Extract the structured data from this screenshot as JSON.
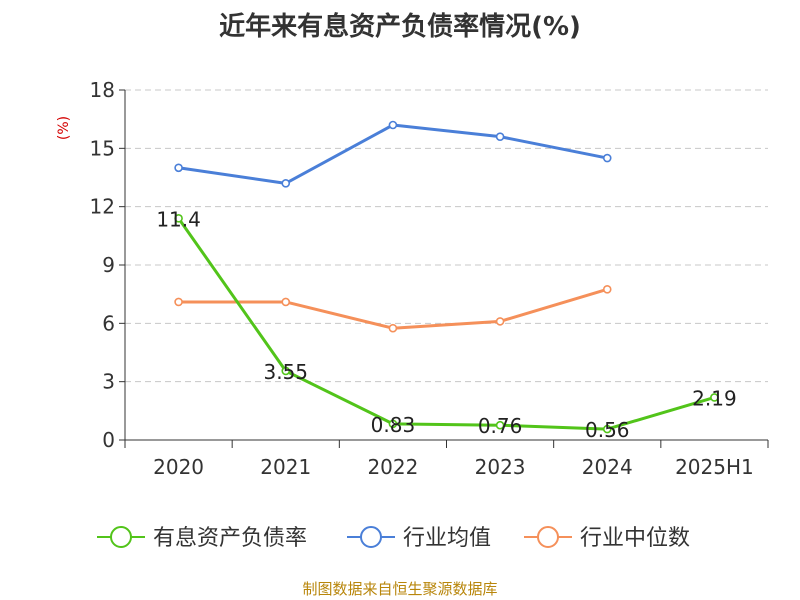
{
  "title": "近年来有息资产负债率情况(%)",
  "source": "制图数据来自恒生聚源数据库",
  "colors": {
    "series": [
      "#52c41a",
      "#4a7fd8",
      "#f5905a"
    ],
    "ylabel": "#d40000",
    "grid": "#c8c8c8",
    "axis": "#333333"
  },
  "chart_data": {
    "type": "line",
    "categories": [
      "2020",
      "2021",
      "2022",
      "2023",
      "2024",
      "2025H1"
    ],
    "ylabel": "(%)",
    "ylim": [
      0,
      18
    ],
    "yticks": [
      0,
      3,
      6,
      9,
      12,
      15,
      18
    ],
    "grid": true,
    "legend_position": "bottom",
    "series": [
      {
        "name": "有息资产负债率",
        "values": [
          11.4,
          3.55,
          0.83,
          0.76,
          0.56,
          2.19
        ],
        "labels": [
          "11.4",
          "3.55",
          "0.83",
          "0.76",
          "0.56",
          "2.19"
        ]
      },
      {
        "name": "行业均值",
        "values": [
          14.0,
          13.2,
          16.2,
          15.6,
          14.5,
          null
        ]
      },
      {
        "name": "行业中位数",
        "values": [
          7.1,
          7.1,
          5.75,
          6.1,
          7.75,
          null
        ]
      }
    ]
  }
}
